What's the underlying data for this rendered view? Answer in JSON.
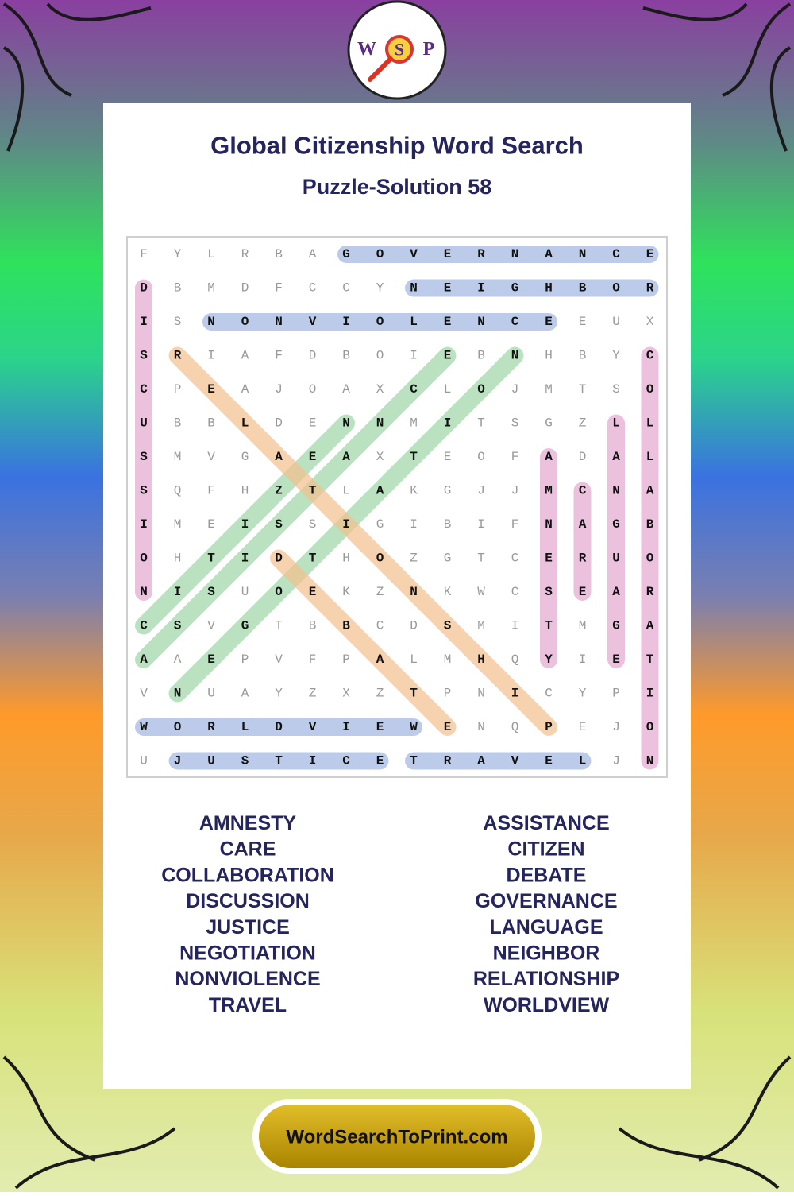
{
  "logo": {
    "letters": [
      "W",
      "S",
      "P"
    ]
  },
  "header": {
    "title": "Global Citizenship Word Search",
    "subtitle": "Puzzle-Solution 58"
  },
  "grid": {
    "rows": [
      "FYLRBAGOVERNANCE",
      "DBMDFCCYNEIGHBOR",
      "ISNONVIOLENCEEUX",
      "SRIAFDBOIEBNHBYC",
      "CPEAJOAXCLOJMTSO",
      "UBBLDENNMITSGZLL",
      "SMVGAEAXTEOFADAL",
      "SQFHZTLAKGJJMCNA",
      "IMEISSIGIBIFNAGB",
      "OHTIDTHOZGTCERUO",
      "NISUOEKZNKWCSEAR",
      "CSVGTBBCDSMITMGA",
      "AAEPVFPALMHQYIET",
      "VNUAYZXZTPNICYPI",
      "WORLDVIEWENQPEJO",
      "UJUSTICETRAVELJN"
    ]
  },
  "words": {
    "left": [
      "AMNESTY",
      "CARE",
      "COLLABORATION",
      "DISCUSSION",
      "JUSTICE",
      "NEGOTIATION",
      "NONVIOLENCE",
      "TRAVEL"
    ],
    "right": [
      "ASSISTANCE",
      "CITIZEN",
      "DEBATE",
      "GOVERNANCE",
      "LANGUAGE",
      "NEIGHBOR",
      "RELATIONSHIP",
      "WORLDVIEW"
    ]
  },
  "footer": {
    "site": "WordSearchToPrint.com"
  }
}
